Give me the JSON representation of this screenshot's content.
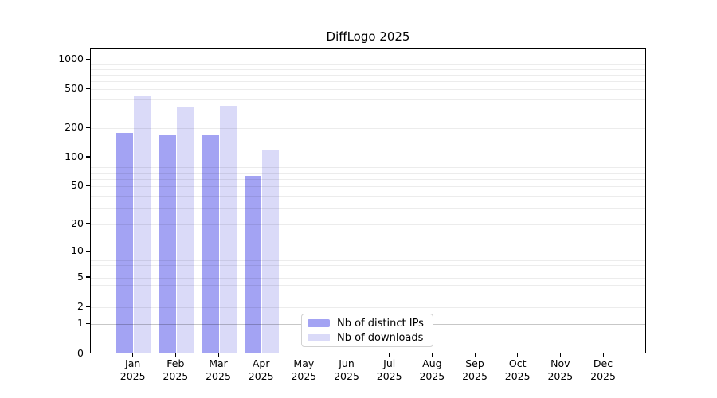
{
  "chart_data": {
    "type": "bar",
    "title": "DiffLogo 2025",
    "categories": [
      "Jan 2025",
      "Feb 2025",
      "Mar 2025",
      "Apr 2025",
      "May 2025",
      "Jun 2025",
      "Jul 2025",
      "Aug 2025",
      "Sep 2025",
      "Oct 2025",
      "Nov 2025",
      "Dec 2025"
    ],
    "series": [
      {
        "name": "Nb of distinct IPs",
        "color": "#a3a3f3",
        "values": [
          178,
          170,
          171,
          65,
          null,
          null,
          null,
          null,
          null,
          null,
          null,
          null
        ]
      },
      {
        "name": "Nb of downloads",
        "color": "#dadaf8",
        "values": [
          421,
          326,
          338,
          120,
          null,
          null,
          null,
          null,
          null,
          null,
          null,
          null
        ]
      }
    ],
    "y_axis": {
      "scale": "log1p",
      "ticks": [
        0,
        1,
        2,
        5,
        10,
        20,
        50,
        100,
        200,
        500,
        1000
      ],
      "range": [
        0,
        1000
      ]
    },
    "x_axis": {
      "tick_label_lines": 2
    },
    "grid": {
      "enabled": true,
      "major_at": [
        1,
        10,
        100,
        1000
      ],
      "minor_rule": "2-9 per decade",
      "major_color": "#c9c9c9",
      "minor_color": "#ececec"
    },
    "legend": {
      "position": "inside-bottom-center",
      "background": "#ffffff",
      "border_color": "#d2d2d2",
      "entries": [
        "Nb of distinct IPs",
        "Nb of downloads"
      ]
    },
    "axis_color": "#000000"
  }
}
